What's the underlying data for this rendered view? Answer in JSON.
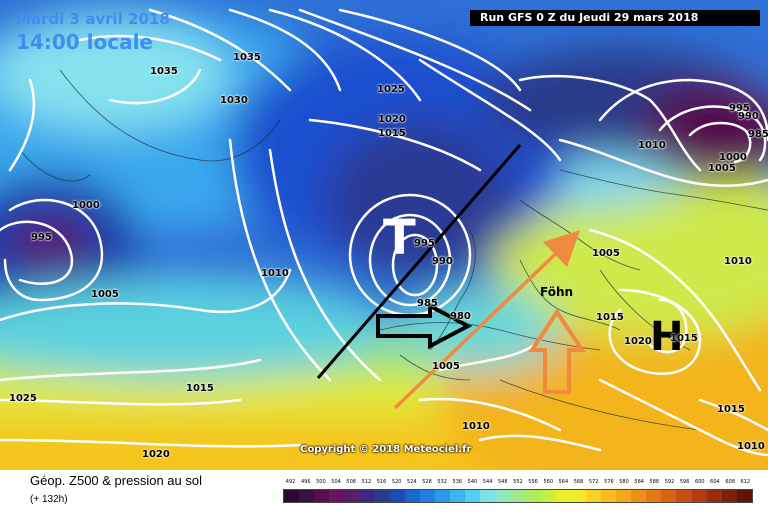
{
  "header": {
    "date_line": "Mardi 3 avril 2018",
    "time_line": "14:00 locale",
    "run_info": "Run GFS 0 Z du Jeudi 29 mars 2018"
  },
  "map": {
    "copyright": "Copyright © 2018 Meteociel.fr",
    "low_symbol": "T",
    "high_symbol": "H",
    "foehn_label": "Föhn",
    "isobar_labels": [
      "1035",
      "1035",
      "1030",
      "1025",
      "1020",
      "1015",
      "1000",
      "995",
      "1005",
      "1010",
      "995",
      "990",
      "985",
      "980",
      "1005",
      "1015",
      "1025",
      "1020",
      "1010",
      "1015",
      "1020",
      "1015",
      "995",
      "990",
      "985",
      "1000",
      "1005",
      "1010",
      "1010",
      "1015",
      "1010",
      "1005"
    ],
    "arrows": [
      "black-arrow",
      "orange-diagonal-arrow",
      "orange-up-arrow",
      "black-front-line"
    ]
  },
  "legend": {
    "title": "Géop. Z500 & pression au sol",
    "subtitle": "(+ 132h)",
    "scale_values": [
      "492",
      "496",
      "500",
      "504",
      "508",
      "512",
      "516",
      "520",
      "524",
      "528",
      "532",
      "536",
      "540",
      "544",
      "548",
      "552",
      "556",
      "560",
      "564",
      "568",
      "572",
      "576",
      "580",
      "584",
      "588",
      "592",
      "596",
      "600",
      "604",
      "608",
      "612"
    ],
    "scale_colors": [
      "#2a0a2e",
      "#3d0f3d",
      "#55104f",
      "#6b1461",
      "#5a1a6e",
      "#3d2a80",
      "#2a3a95",
      "#1a4fb0",
      "#1a66cc",
      "#1e80e0",
      "#2a9ae8",
      "#3ab5ee",
      "#55ccf0",
      "#7de0e6",
      "#8ee8c0",
      "#9eea8e",
      "#aeec5c",
      "#c8ef3a",
      "#e6f02a",
      "#f5e825",
      "#f8d420",
      "#f8be1c",
      "#f5a818",
      "#ee9016",
      "#e47a14",
      "#d86412",
      "#c84e10",
      "#b23c10",
      "#982c10",
      "#7c2010",
      "#5e160c"
    ]
  }
}
